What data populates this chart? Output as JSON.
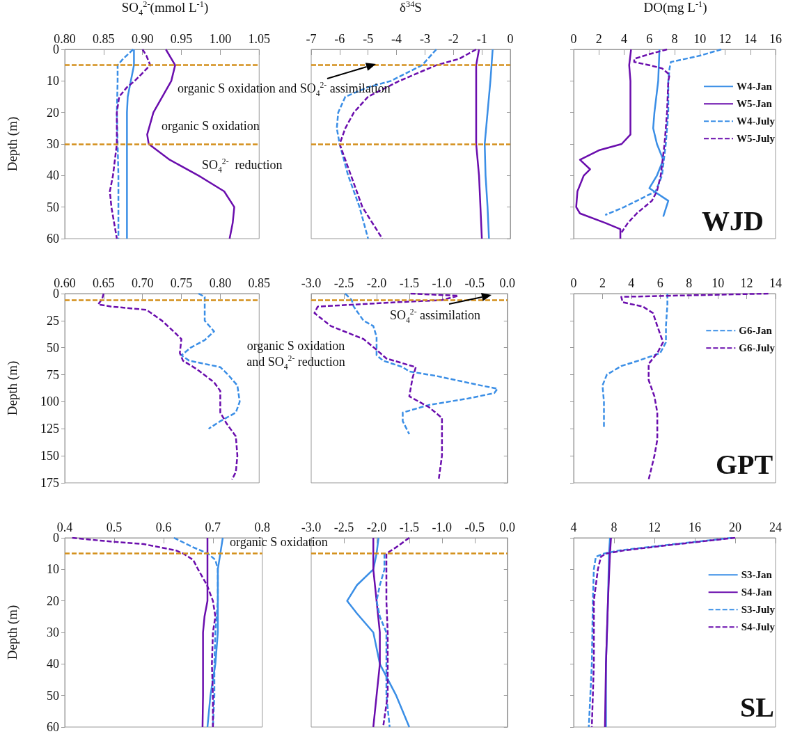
{
  "chart_data": [
    {
      "type": "line",
      "xlabel": "SO$_{4}$$^{2-}$(mmol L$^{-1}$)",
      "ylabel": "Depth (m)",
      "xlim": [
        0.8,
        1.05
      ],
      "xticks": [
        {
          "value": 0.8,
          "label": "0.80"
        },
        {
          "value": 0.85,
          "label": "0.85"
        },
        {
          "value": 0.9,
          "label": "0.90"
        },
        {
          "value": 0.95,
          "label": "0.95"
        },
        {
          "value": 1.0,
          "label": "1.00"
        },
        {
          "value": 1.05,
          "label": "1.05"
        }
      ],
      "ylim": [
        60,
        0
      ],
      "yticks": [
        0,
        10,
        20,
        30,
        40,
        50,
        60
      ],
      "grid": false,
      "annotations": [
        "organic S oxidation and SO$_{4}$$^{2-}$ assimilation",
        "organic S oxidation",
        "SO$_{4}$$^{2-}$  reduction"
      ],
      "ref_lines": [
        {
          "axis": "y",
          "value": 5,
          "color": "#d4901c",
          "line_style": "dashed"
        },
        {
          "axis": "y",
          "value": 30,
          "color": "#d4901c",
          "line_style": "dashed"
        }
      ],
      "series": [
        {
          "color": "#3a8ee6",
          "line_style": "solid",
          "x": [
            0.889,
            0.889,
            0.885,
            0.881,
            0.88,
            0.88,
            0.88,
            0.88,
            0.88
          ],
          "values": [
            0,
            5,
            10,
            15,
            20,
            30,
            40,
            50,
            60
          ]
        },
        {
          "color": "#6a0dad",
          "line_style": "solid",
          "x": [
            0.93,
            0.942,
            0.937,
            0.914,
            0.906,
            0.908,
            0.935,
            0.972,
            1.005,
            1.018,
            1.016,
            1.012
          ],
          "values": [
            0,
            5,
            10,
            20,
            27,
            30,
            35,
            40,
            45,
            50,
            55,
            60
          ]
        },
        {
          "color": "#3a8ee6",
          "line_style": "dashed",
          "x": [
            0.888,
            0.875,
            0.868,
            0.868,
            0.867,
            0.868,
            0.869,
            0.869,
            0.869
          ],
          "values": [
            0,
            3,
            5,
            10,
            20,
            30,
            40,
            50,
            60
          ]
        },
        {
          "color": "#6a0dad",
          "line_style": "dashed",
          "x": [
            0.9,
            0.905,
            0.91,
            0.898,
            0.89,
            0.88,
            0.87,
            0.867,
            0.867,
            0.862,
            0.858,
            0.86,
            0.867
          ],
          "values": [
            0,
            2,
            5,
            8,
            10,
            12,
            15,
            20,
            30,
            40,
            45,
            50,
            60
          ]
        }
      ]
    },
    {
      "type": "line",
      "xlabel": "δ$^{34}$S",
      "xlim": [
        -7,
        0
      ],
      "xticks": [
        -7,
        -6,
        -5,
        -4,
        -3,
        -2,
        -1,
        0
      ],
      "ylim": [
        60,
        0
      ],
      "yticks": [
        0,
        10,
        20,
        30,
        40,
        50,
        60
      ],
      "tick_labels": "x",
      "grid": false,
      "ref_lines": [
        {
          "axis": "y",
          "value": 5,
          "color": "#d4901c",
          "line_style": "dashed"
        },
        {
          "axis": "y",
          "value": 30,
          "color": "#d4901c",
          "line_style": "dashed"
        }
      ],
      "series": [
        {
          "color": "#3a8ee6",
          "line_style": "solid",
          "x": [
            -0.62,
            -0.7,
            -0.8,
            -0.9,
            -0.87,
            -0.8,
            -0.75
          ],
          "values": [
            0,
            10,
            20,
            30,
            40,
            50,
            60
          ]
        },
        {
          "color": "#6a0dad",
          "line_style": "solid",
          "x": [
            -1.1,
            -1.2,
            -1.2,
            -1.2,
            -1.1,
            -1.05,
            -1.0
          ],
          "values": [
            0,
            5,
            20,
            30,
            40,
            50,
            60
          ]
        },
        {
          "color": "#3a8ee6",
          "line_style": "dashed",
          "x": [
            -2.6,
            -3.1,
            -4.2,
            -5.0,
            -5.8,
            -6.05,
            -6.1,
            -6.0,
            -5.7,
            -5.3,
            -5.0
          ],
          "values": [
            0,
            5,
            10,
            12,
            15,
            20,
            25,
            30,
            40,
            50,
            60
          ]
        },
        {
          "color": "#6a0dad",
          "line_style": "dashed",
          "x": [
            -1.2,
            -1.8,
            -2.6,
            -3.9,
            -5.0,
            -5.5,
            -5.8,
            -6.0,
            -5.6,
            -5.2,
            -4.5
          ],
          "values": [
            0,
            3,
            5,
            10,
            15,
            20,
            25,
            30,
            40,
            50,
            60
          ]
        }
      ]
    },
    {
      "type": "line",
      "xlabel": "DO(mg L$^{-1}$)",
      "xlim": [
        0,
        16
      ],
      "xticks": [
        0,
        2,
        4,
        6,
        8,
        10,
        12,
        14,
        16
      ],
      "ylim": [
        60,
        0
      ],
      "yticks": [
        0,
        10,
        20,
        30,
        40,
        50,
        60
      ],
      "tick_labels": "x",
      "grid": false,
      "legend": "right",
      "annotations": [
        "WJD"
      ],
      "series": [
        {
          "name": "W4-Jan",
          "color": "#3a8ee6",
          "line_style": "solid",
          "x": [
            6.8,
            6.7,
            6.4,
            6.3,
            6.6,
            7.1,
            6.6,
            6.0,
            7.5,
            7.1
          ],
          "values": [
            0,
            10,
            20,
            25,
            30,
            35,
            40,
            44,
            48,
            53
          ]
        },
        {
          "name": "W5-Jan",
          "color": "#6a0dad",
          "line_style": "solid",
          "x": [
            4.55,
            4.4,
            4.5,
            4.5,
            4.5,
            3.8,
            2.0,
            0.5,
            1.3,
            0.8,
            0.3,
            0.2,
            0.5,
            2.5,
            3.7,
            3.7
          ],
          "values": [
            0,
            5,
            10,
            20,
            27,
            30,
            32,
            35,
            38,
            40,
            45,
            50,
            52,
            55,
            57,
            60
          ]
        },
        {
          "name": "W4-July",
          "color": "#3a8ee6",
          "line_style": "dashed",
          "x": [
            11.7,
            10,
            7.7,
            7.6,
            7.5,
            7.5,
            7.3,
            7.0,
            6.5,
            5.5,
            4.0,
            2.5
          ],
          "values": [
            0,
            2,
            4,
            6,
            10,
            20,
            30,
            40,
            45,
            47,
            50,
            52.5
          ]
        },
        {
          "name": "W5-July",
          "color": "#6a0dad",
          "line_style": "dashed",
          "x": [
            7.4,
            6.0,
            4.8,
            4.8,
            6.0,
            7.0,
            7.6,
            7.5,
            7.4,
            7.2,
            6.9,
            6.6,
            6.2,
            5.0,
            4.3,
            3.8
          ],
          "values": [
            0,
            1.5,
            3,
            4,
            5,
            6,
            8,
            10,
            20,
            30,
            40,
            45,
            48,
            52,
            55,
            58
          ]
        }
      ]
    },
    {
      "type": "line",
      "ylabel": "Depth (m)",
      "xlim": [
        0.6,
        0.85
      ],
      "xticks": [
        {
          "value": 0.6,
          "label": "0.60"
        },
        {
          "value": 0.65,
          "label": "0.65"
        },
        {
          "value": 0.7,
          "label": "0.70"
        },
        {
          "value": 0.75,
          "label": "0.75"
        },
        {
          "value": 0.8,
          "label": "0.80"
        },
        {
          "value": 0.85,
          "label": "0.85"
        }
      ],
      "ylim": [
        175,
        0
      ],
      "yticks": [
        0,
        25,
        50,
        75,
        100,
        125,
        150,
        175
      ],
      "grid": false,
      "annotations": [
        "organic S oxidation\nand SO$_{4}$$^{2-}$ reduction"
      ],
      "ref_lines": [
        {
          "axis": "y",
          "value": 6,
          "color": "#d4901c",
          "line_style": "dashed"
        }
      ],
      "series": [
        {
          "color": "#3a8ee6",
          "line_style": "dashed",
          "x": [
            0.772,
            0.78,
            0.78,
            0.78,
            0.792,
            0.78,
            0.762,
            0.75,
            0.76,
            0.8,
            0.81,
            0.822,
            0.825,
            0.82,
            0.8,
            0.785
          ],
          "values": [
            0,
            3,
            10,
            25,
            35,
            43,
            50,
            57,
            62,
            68,
            75,
            85,
            100,
            110,
            118,
            125
          ]
        },
        {
          "color": "#6a0dad",
          "line_style": "dashed",
          "x": [
            0.65,
            0.648,
            0.643,
            0.66,
            0.705,
            0.725,
            0.74,
            0.75,
            0.748,
            0.752,
            0.77,
            0.792,
            0.8,
            0.8,
            0.8,
            0.808,
            0.82,
            0.822,
            0.82,
            0.815
          ],
          "values": [
            0,
            5,
            10,
            12,
            15,
            25,
            35,
            42,
            55,
            62,
            70,
            82,
            90,
            100,
            110,
            120,
            132,
            150,
            165,
            172
          ]
        }
      ]
    },
    {
      "type": "line",
      "xlim": [
        -3,
        0
      ],
      "xticks": [
        {
          "value": -3,
          "label": "-3.0"
        },
        {
          "value": -2.5,
          "label": "-2.5"
        },
        {
          "value": -2,
          "label": "-2.0"
        },
        {
          "value": -1.5,
          "label": "-1.5"
        },
        {
          "value": -1,
          "label": "-1.0"
        },
        {
          "value": -0.5,
          "label": "-0.5"
        },
        {
          "value": 0,
          "label": "0.0"
        }
      ],
      "ylim": [
        175,
        0
      ],
      "yticks": [
        0,
        25,
        50,
        75,
        100,
        125,
        150,
        175
      ],
      "tick_labels": "x",
      "grid": false,
      "annotations": [
        "SO$_{4}$$^{2-}$ assimilation"
      ],
      "ref_lines": [
        {
          "axis": "y",
          "value": 6,
          "color": "#d4901c",
          "line_style": "dashed"
        }
      ],
      "series": [
        {
          "color": "#3a8ee6",
          "line_style": "dashed",
          "x": [
            -2.48,
            -2.38,
            -2.35,
            -2.2,
            -2.05,
            -2.0,
            -2.0,
            -2.0,
            -1.9,
            -1.6,
            -1.5,
            -1.1,
            -0.4,
            -0.15,
            -0.2,
            -0.6,
            -1.2,
            -1.6,
            -1.6,
            -1.5
          ],
          "values": [
            0,
            6,
            12,
            25,
            30,
            40,
            50,
            57,
            62,
            68,
            72,
            76,
            85,
            88,
            92,
            97,
            103,
            110,
            118,
            130
          ]
        },
        {
          "color": "#6a0dad",
          "line_style": "dashed",
          "x": [
            -1.48,
            -0.75,
            -1.0,
            -1.7,
            -2.9,
            -2.95,
            -2.7,
            -2.2,
            -2.0,
            -1.85,
            -1.4,
            -1.45,
            -1.5,
            -1.2,
            -1.0,
            -1.0,
            -1.0,
            -1.05
          ],
          "values": [
            0,
            2,
            6,
            8,
            12,
            18,
            30,
            42,
            52,
            60,
            68,
            78,
            95,
            105,
            115,
            130,
            150,
            172
          ]
        }
      ]
    },
    {
      "type": "line",
      "xlim": [
        0,
        14
      ],
      "xticks": [
        0,
        2,
        4,
        6,
        8,
        10,
        12,
        14
      ],
      "ylim": [
        175,
        0
      ],
      "yticks": [
        0,
        25,
        50,
        75,
        100,
        125,
        150,
        175
      ],
      "tick_labels": "x",
      "grid": false,
      "legend": "right",
      "annotations": [
        "GPT"
      ],
      "series": [
        {
          "name": "G6-Jan",
          "color": "#3a8ee6",
          "line_style": "dashed",
          "x": [
            6.5,
            6.5,
            6.4,
            6.4,
            6.0,
            4.5,
            3.3,
            2.3,
            2.0,
            2.1,
            2.1
          ],
          "values": [
            0,
            10,
            30,
            45,
            55,
            62,
            67,
            75,
            85,
            100,
            125
          ]
        },
        {
          "name": "G6-July",
          "color": "#6a0dad",
          "line_style": "dashed",
          "x": [
            13.5,
            3.3,
            3.4,
            4.8,
            5.5,
            5.8,
            6.2,
            5.8,
            5.2,
            5.2,
            5.6,
            5.8,
            5.8,
            5.6,
            5.2
          ],
          "values": [
            0,
            3,
            8,
            12,
            18,
            30,
            45,
            55,
            65,
            80,
            95,
            110,
            135,
            150,
            172
          ]
        }
      ]
    },
    {
      "type": "line",
      "ylabel": "Depth (m)",
      "xlim": [
        0.4,
        0.8
      ],
      "xticks": [
        0.4,
        0.5,
        0.6,
        0.7,
        0.8
      ],
      "ylim": [
        60,
        0
      ],
      "yticks": [
        0,
        10,
        20,
        30,
        40,
        50,
        60
      ],
      "grid": false,
      "annotations": [
        "organic S oxidation"
      ],
      "ref_lines": [
        {
          "axis": "y",
          "value": 5,
          "color": "#d4901c",
          "line_style": "dashed"
        }
      ],
      "series": [
        {
          "color": "#3a8ee6",
          "line_style": "solid",
          "x": [
            0.72,
            0.715,
            0.71,
            0.71,
            0.71,
            0.705,
            0.695,
            0.689
          ],
          "values": [
            0,
            5,
            10,
            20,
            30,
            40,
            50,
            60
          ]
        },
        {
          "color": "#6a0dad",
          "line_style": "solid",
          "x": [
            0.689,
            0.689,
            0.689,
            0.683,
            0.68,
            0.68,
            0.68,
            0.679
          ],
          "values": [
            0,
            10,
            20,
            25,
            30,
            40,
            50,
            60
          ]
        },
        {
          "color": "#3a8ee6",
          "line_style": "dashed",
          "x": [
            0.621,
            0.66,
            0.69,
            0.705,
            0.71,
            0.71,
            0.705,
            0.703,
            0.703,
            0.7
          ],
          "values": [
            0,
            3,
            5,
            7,
            10,
            20,
            30,
            40,
            50,
            60
          ]
        },
        {
          "color": "#6a0dad",
          "line_style": "dashed",
          "x": [
            0.415,
            0.48,
            0.56,
            0.625,
            0.64,
            0.66,
            0.67,
            0.688,
            0.7,
            0.705,
            0.7,
            0.698,
            0.7,
            0.7
          ],
          "values": [
            0,
            1,
            2,
            4,
            5,
            7,
            10,
            15,
            20,
            25,
            30,
            40,
            50,
            60
          ]
        }
      ]
    },
    {
      "type": "line",
      "xlim": [
        -3,
        0
      ],
      "xticks": [
        {
          "value": -3,
          "label": "-3.0"
        },
        {
          "value": -2.5,
          "label": "-2.5"
        },
        {
          "value": -2,
          "label": "-2.0"
        },
        {
          "value": -1.5,
          "label": "-1.5"
        },
        {
          "value": -1,
          "label": "-1.0"
        },
        {
          "value": -0.5,
          "label": "-0.5"
        },
        {
          "value": 0,
          "label": "0.0"
        }
      ],
      "ylim": [
        60,
        0
      ],
      "yticks": [
        0,
        10,
        20,
        30,
        40,
        50,
        60
      ],
      "tick_labels": "x",
      "grid": false,
      "ref_lines": [
        {
          "axis": "y",
          "value": 5,
          "color": "#d4901c",
          "line_style": "dashed"
        }
      ],
      "series": [
        {
          "color": "#3a8ee6",
          "line_style": "solid",
          "x": [
            -1.97,
            -2.0,
            -2.05,
            -2.3,
            -2.45,
            -2.3,
            -2.05,
            -1.95,
            -1.7,
            -1.5
          ],
          "values": [
            0,
            5,
            10,
            15,
            20,
            24,
            30,
            40,
            50,
            60
          ]
        },
        {
          "color": "#6a0dad",
          "line_style": "solid",
          "x": [
            -2.05,
            -2.05,
            -2.0,
            -1.95,
            -1.95,
            -2.0,
            -2.05
          ],
          "values": [
            0,
            10,
            20,
            30,
            40,
            50,
            60
          ]
        },
        {
          "color": "#3a8ee6",
          "line_style": "dashed",
          "x": [
            -1.88,
            -1.88,
            -1.95,
            -2.0,
            -1.95,
            -1.85,
            -1.85,
            -1.85,
            -1.8
          ],
          "values": [
            5,
            10,
            15,
            20,
            25,
            30,
            40,
            50,
            60
          ]
        },
        {
          "color": "#6a0dad",
          "line_style": "dashed",
          "x": [
            -1.5,
            -1.7,
            -1.85,
            -1.85,
            -1.85,
            -1.83,
            -1.83,
            -1.83,
            -1.9
          ],
          "values": [
            0,
            3,
            5,
            10,
            20,
            30,
            40,
            50,
            60
          ]
        }
      ]
    },
    {
      "type": "line",
      "xlim": [
        4,
        24
      ],
      "xticks": [
        4,
        8,
        12,
        16,
        20,
        24
      ],
      "ylim": [
        60,
        0
      ],
      "yticks": [
        0,
        10,
        20,
        30,
        40,
        50,
        60
      ],
      "tick_labels": "x",
      "grid": false,
      "legend": "right",
      "annotations": [
        "SL"
      ],
      "series": [
        {
          "name": "S3-Jan",
          "color": "#3a8ee6",
          "line_style": "solid",
          "x": [
            7.6,
            7.5,
            7.4,
            7.2,
            7.2
          ],
          "values": [
            0,
            5,
            20,
            40,
            60
          ]
        },
        {
          "name": "S4-Jan",
          "color": "#6a0dad",
          "line_style": "solid",
          "x": [
            7.7,
            7.6,
            7.4,
            7.2,
            7.1
          ],
          "values": [
            0,
            5,
            20,
            40,
            60
          ]
        },
        {
          "name": "S3-July",
          "color": "#3a8ee6",
          "line_style": "dashed",
          "x": [
            19.7,
            14,
            8.5,
            7,
            6.2,
            6.0,
            5.9,
            5.8,
            5.5
          ],
          "values": [
            0,
            2,
            4,
            5,
            6,
            10,
            20,
            40,
            60
          ]
        },
        {
          "name": "S4-July",
          "color": "#6a0dad",
          "line_style": "dashed",
          "x": [
            20,
            14.3,
            9,
            7.2,
            6.7,
            6.4,
            6.0,
            6.0,
            5.8
          ],
          "values": [
            0,
            2,
            4,
            5,
            6,
            10,
            20,
            40,
            60
          ]
        }
      ]
    }
  ]
}
